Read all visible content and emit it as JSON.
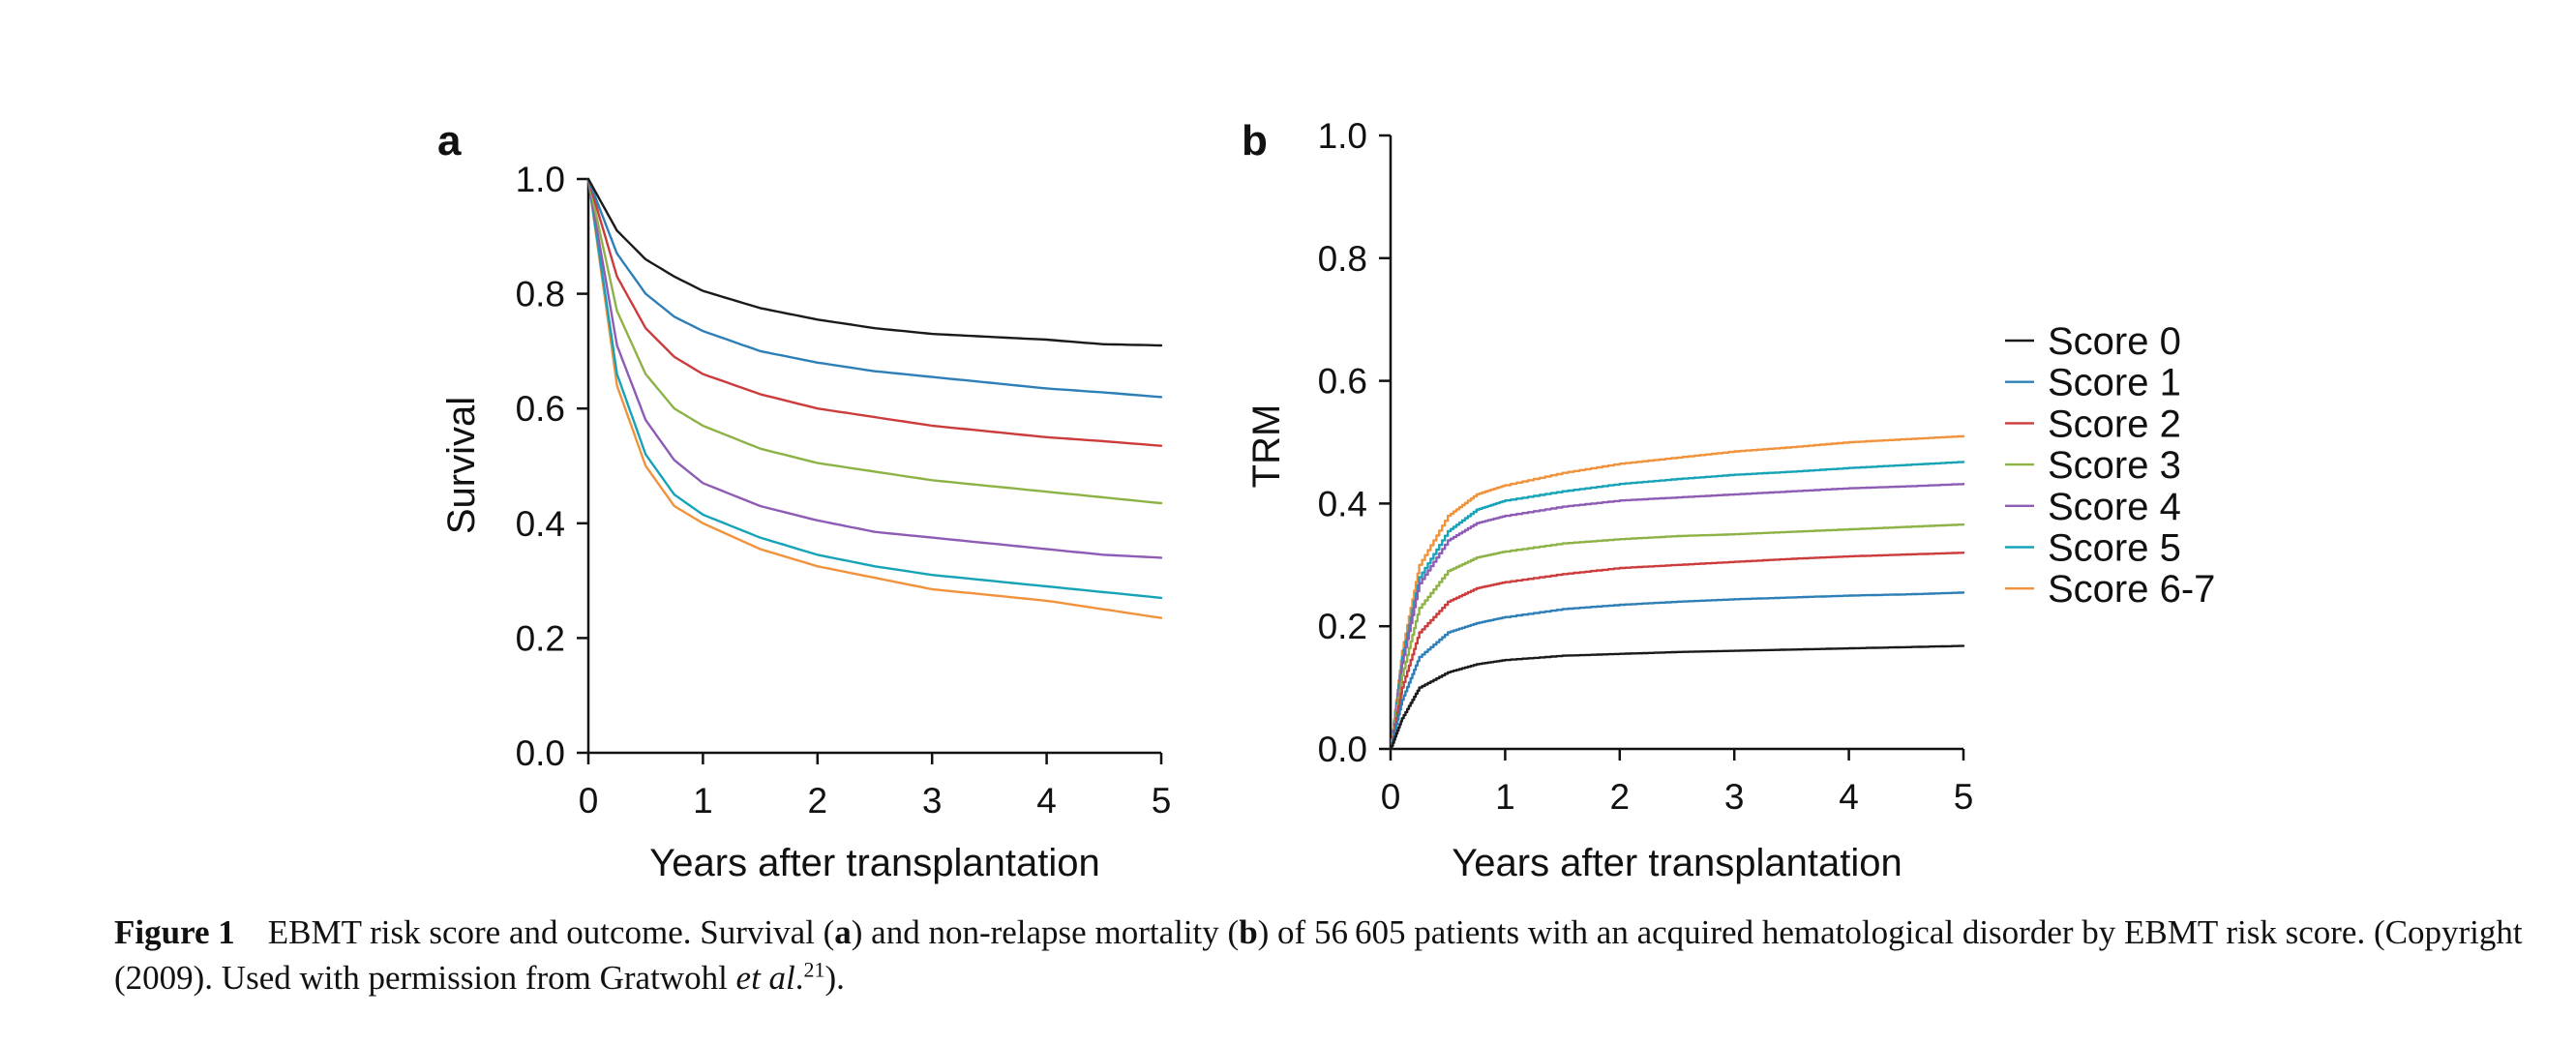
{
  "chart_data": [
    {
      "type": "line",
      "panel": "a",
      "xlabel": "Years after transplantation",
      "ylabel": "Survival",
      "xlim": [
        0,
        5
      ],
      "ylim": [
        0,
        1
      ],
      "x_ticks": [
        "0",
        "1",
        "2",
        "3",
        "4",
        "5"
      ],
      "y_ticks": [
        "0.0",
        "0.2",
        "0.4",
        "0.6",
        "0.8",
        "1.0"
      ],
      "grid": false,
      "x": [
        0,
        0.25,
        0.5,
        0.75,
        1,
        1.5,
        2,
        2.5,
        3,
        3.5,
        4,
        4.5,
        5
      ],
      "series": [
        {
          "name": "Score 0",
          "color": "#1a1a1a",
          "values": [
            1.0,
            0.91,
            0.86,
            0.83,
            0.805,
            0.775,
            0.755,
            0.74,
            0.73,
            0.725,
            0.72,
            0.712,
            0.71
          ]
        },
        {
          "name": "Score 1",
          "color": "#2e7fb8",
          "values": [
            1.0,
            0.87,
            0.8,
            0.76,
            0.735,
            0.7,
            0.68,
            0.665,
            0.655,
            0.645,
            0.635,
            0.628,
            0.62
          ]
        },
        {
          "name": "Score 2",
          "color": "#cc3c3c",
          "values": [
            1.0,
            0.83,
            0.74,
            0.69,
            0.66,
            0.625,
            0.6,
            0.585,
            0.57,
            0.56,
            0.55,
            0.543,
            0.535
          ]
        },
        {
          "name": "Score 3",
          "color": "#8db347",
          "values": [
            1.0,
            0.77,
            0.66,
            0.6,
            0.57,
            0.53,
            0.505,
            0.49,
            0.475,
            0.465,
            0.455,
            0.445,
            0.435
          ]
        },
        {
          "name": "Score 4",
          "color": "#8e5bb5",
          "values": [
            1.0,
            0.71,
            0.58,
            0.51,
            0.47,
            0.43,
            0.405,
            0.385,
            0.375,
            0.365,
            0.355,
            0.345,
            0.34
          ]
        },
        {
          "name": "Score 5",
          "color": "#16a3b8",
          "values": [
            1.0,
            0.66,
            0.52,
            0.45,
            0.415,
            0.375,
            0.345,
            0.325,
            0.31,
            0.3,
            0.29,
            0.28,
            0.27
          ]
        },
        {
          "name": "Score 6-7",
          "color": "#f0933c",
          "values": [
            1.0,
            0.64,
            0.5,
            0.43,
            0.4,
            0.355,
            0.325,
            0.305,
            0.285,
            0.275,
            0.265,
            0.25,
            0.235
          ]
        }
      ]
    },
    {
      "type": "line",
      "panel": "b",
      "xlabel": "Years after transplantation",
      "ylabel": "TRM",
      "xlim": [
        0,
        5
      ],
      "ylim": [
        0,
        1
      ],
      "x_ticks": [
        "0",
        "1",
        "2",
        "3",
        "4",
        "5"
      ],
      "y_ticks": [
        "0.0",
        "0.2",
        "0.4",
        "0.6",
        "0.8",
        "1.0"
      ],
      "grid": false,
      "legend_position": "right",
      "x": [
        0,
        0.1,
        0.25,
        0.5,
        0.75,
        1,
        1.5,
        2,
        2.5,
        3,
        3.5,
        4,
        4.5,
        5
      ],
      "series": [
        {
          "name": "Score 0",
          "color": "#1a1a1a",
          "values": [
            0.0,
            0.05,
            0.1,
            0.125,
            0.138,
            0.145,
            0.152,
            0.155,
            0.158,
            0.16,
            0.162,
            0.164,
            0.166,
            0.168
          ]
        },
        {
          "name": "Score 1",
          "color": "#2e7fb8",
          "values": [
            0.0,
            0.08,
            0.15,
            0.19,
            0.205,
            0.215,
            0.228,
            0.235,
            0.24,
            0.244,
            0.247,
            0.25,
            0.252,
            0.255
          ]
        },
        {
          "name": "Score 2",
          "color": "#cc3c3c",
          "values": [
            0.0,
            0.1,
            0.19,
            0.24,
            0.262,
            0.272,
            0.285,
            0.295,
            0.3,
            0.305,
            0.31,
            0.314,
            0.317,
            0.32
          ]
        },
        {
          "name": "Score 3",
          "color": "#8db347",
          "values": [
            0.0,
            0.12,
            0.23,
            0.29,
            0.312,
            0.322,
            0.335,
            0.342,
            0.347,
            0.35,
            0.354,
            0.358,
            0.362,
            0.366
          ]
        },
        {
          "name": "Score 4",
          "color": "#8e5bb5",
          "values": [
            0.0,
            0.14,
            0.27,
            0.34,
            0.368,
            0.38,
            0.395,
            0.405,
            0.41,
            0.415,
            0.42,
            0.425,
            0.428,
            0.432
          ]
        },
        {
          "name": "Score 5",
          "color": "#16a3b8",
          "values": [
            0.0,
            0.15,
            0.28,
            0.355,
            0.39,
            0.405,
            0.42,
            0.432,
            0.44,
            0.447,
            0.452,
            0.458,
            0.463,
            0.468
          ]
        },
        {
          "name": "Score 6-7",
          "color": "#f0933c",
          "values": [
            0.0,
            0.16,
            0.3,
            0.38,
            0.415,
            0.43,
            0.45,
            0.465,
            0.475,
            0.485,
            0.492,
            0.5,
            0.505,
            0.51
          ]
        }
      ]
    }
  ],
  "caption": {
    "figure_number": "Figure 1",
    "t1": "EBMT risk score and outcome. Survival (",
    "a": "a",
    "t2": ") and non-relapse mortality (",
    "b": "b",
    "t3": ") of 56 605 patients with an acquired hematological disorder by EBMT risk score. (Copyright (2009). Used with permission from Gratwohl ",
    "etal": "et al",
    "t4": ".",
    "ref": "21",
    "t5": ")."
  }
}
